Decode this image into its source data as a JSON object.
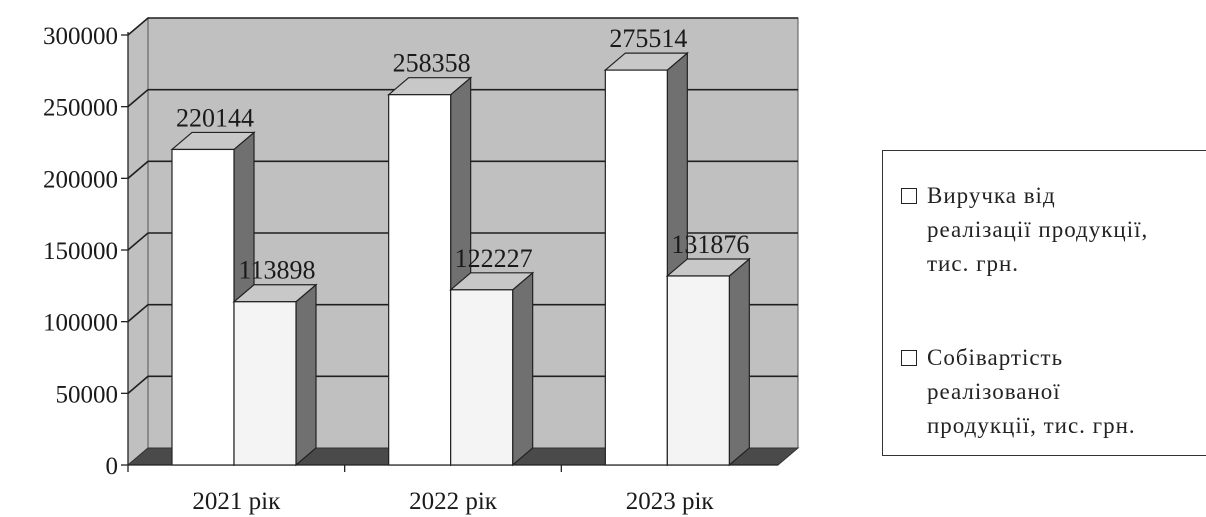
{
  "chart_data": {
    "type": "bar",
    "categories": [
      "2021 рік",
      "2022 рік",
      "2023 рік"
    ],
    "series": [
      {
        "name": "Виручка від реалізації продукції, тис. грн.",
        "values": [
          220144,
          258358,
          275514
        ]
      },
      {
        "name": "Собівартість реалізованої продукції, тис. грн.",
        "values": [
          113898,
          122227,
          131876
        ]
      }
    ],
    "value_labels": [
      [
        "220144",
        "258358",
        "275514"
      ],
      [
        "113898",
        "122227",
        "131876"
      ]
    ],
    "yticks": [
      "0",
      "50000",
      "100000",
      "150000",
      "200000",
      "250000",
      "300000"
    ],
    "ylim": [
      0,
      300000
    ],
    "grid": true,
    "legend_position": "right",
    "style": "3d-clustered-column"
  },
  "legend": {
    "items": [
      {
        "lines": [
          "Виручка від",
          "реалізації продукції,",
          "тис. грн."
        ]
      },
      {
        "lines": [
          "Собівартість",
          "реалізованої",
          "продукції, тис. грн."
        ]
      }
    ]
  },
  "colors": {
    "wall": "#c0c0c0",
    "floor": "#4a4a4a",
    "bar_front": [
      "#ffffff",
      "#f4f4f4"
    ],
    "bar_top": "#c8c8c8",
    "bar_side": "#707070",
    "gridline": "#1f1f1f"
  }
}
